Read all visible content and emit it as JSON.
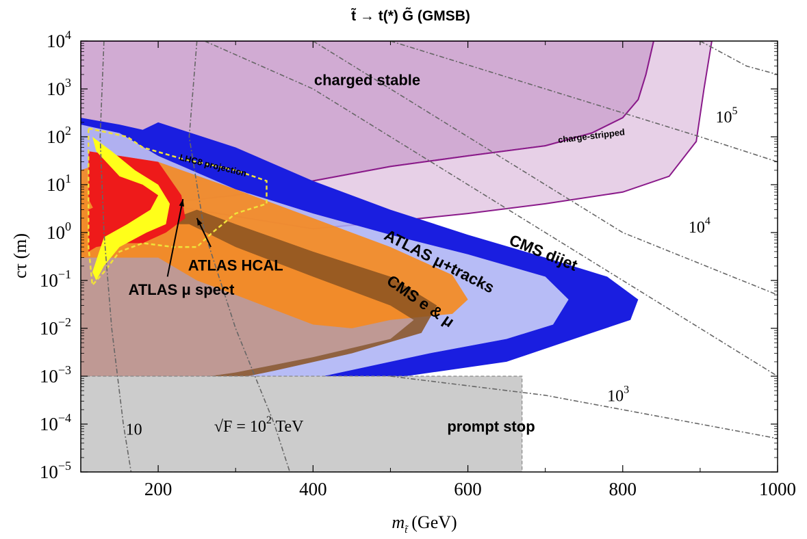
{
  "chart_data": {
    "type": "area",
    "title": "t̃ → t(*) G̃  (GMSB)",
    "xlabel": "m",
    "xlabel_sub": "t̃",
    "xlabel_unit": "(GeV)",
    "ylabel": "cτ (m)",
    "x_scale": "linear",
    "y_scale": "log",
    "xlim": [
      100,
      1000
    ],
    "ylim": [
      1e-05,
      10000.0
    ],
    "x_ticks": [
      {
        "value": 200,
        "label": "200"
      },
      {
        "value": 400,
        "label": "400"
      },
      {
        "value": 600,
        "label": "600"
      },
      {
        "value": 800,
        "label": "800"
      },
      {
        "value": 1000,
        "label": "1000"
      }
    ],
    "y_ticks": [
      {
        "value": 1e-05,
        "base": "10",
        "exp": "−5"
      },
      {
        "value": 0.0001,
        "base": "10",
        "exp": "−4"
      },
      {
        "value": 0.001,
        "base": "10",
        "exp": "−3"
      },
      {
        "value": 0.01,
        "base": "10",
        "exp": "−2"
      },
      {
        "value": 0.1,
        "base": "10",
        "exp": "−1"
      },
      {
        "value": 1,
        "base": "10",
        "exp": "0"
      },
      {
        "value": 10,
        "base": "10",
        "exp": "1"
      },
      {
        "value": 100,
        "base": "10",
        "exp": "2"
      },
      {
        "value": 1000,
        "base": "10",
        "exp": "3"
      },
      {
        "value": 10000,
        "base": "10",
        "exp": "4"
      }
    ],
    "regions": [
      {
        "name": "charged stable",
        "fill": "#c99ccb",
        "opacity": 0.85,
        "stroke": "#8a2a8a",
        "points": [
          [
            100,
            3
          ],
          [
            200,
            4
          ],
          [
            300,
            6
          ],
          [
            400,
            12
          ],
          [
            500,
            24
          ],
          [
            600,
            40
          ],
          [
            700,
            65
          ],
          [
            760,
            120
          ],
          [
            800,
            250
          ],
          [
            820,
            600
          ],
          [
            830,
            2000
          ],
          [
            840,
            10000
          ],
          [
            100,
            10000
          ]
        ]
      },
      {
        "name": "charge-stripped",
        "fill": "#e3c8e3",
        "opacity": 0.85,
        "stroke": "#8a1a8a",
        "points": [
          [
            100,
            3
          ],
          [
            200,
            4
          ],
          [
            400,
            1.2
          ],
          [
            500,
            1.7
          ],
          [
            600,
            2.5
          ],
          [
            700,
            4
          ],
          [
            800,
            7
          ],
          [
            860,
            15
          ],
          [
            895,
            80
          ],
          [
            905,
            1000
          ],
          [
            915,
            10000
          ],
          [
            840,
            10000
          ],
          [
            830,
            2000
          ],
          [
            820,
            600
          ],
          [
            800,
            250
          ],
          [
            760,
            120
          ],
          [
            700,
            65
          ],
          [
            600,
            40
          ],
          [
            500,
            24
          ],
          [
            400,
            12
          ],
          [
            300,
            6
          ],
          [
            200,
            4
          ]
        ]
      },
      {
        "name": "CMS dijet (inner)",
        "fill": "#aab0f5",
        "opacity": 0.85,
        "points": [
          [
            100,
            180
          ],
          [
            150,
            120
          ],
          [
            200,
            40
          ],
          [
            300,
            8
          ],
          [
            400,
            2.5
          ],
          [
            500,
            0.9
          ],
          [
            600,
            0.35
          ],
          [
            700,
            0.12
          ],
          [
            730,
            0.04
          ],
          [
            710,
            0.012
          ],
          [
            650,
            0.006
          ],
          [
            550,
            0.003
          ],
          [
            400,
            0.0009
          ],
          [
            300,
            0.0004
          ],
          [
            200,
            0.0002
          ],
          [
            100,
            0.0002
          ]
        ]
      },
      {
        "name": "CMS dijet",
        "fill": "#1a1ee0",
        "opacity": 1.0,
        "points": [
          [
            100,
            250
          ],
          [
            150,
            180
          ],
          [
            180,
            140
          ],
          [
            200,
            200
          ],
          [
            300,
            60
          ],
          [
            400,
            12
          ],
          [
            500,
            3
          ],
          [
            600,
            0.9
          ],
          [
            700,
            0.3
          ],
          [
            780,
            0.12
          ],
          [
            820,
            0.04
          ],
          [
            810,
            0.015
          ],
          [
            760,
            0.008
          ],
          [
            650,
            0.002
          ],
          [
            500,
            0.0009
          ],
          [
            400,
            0.0005
          ],
          [
            300,
            0.0003
          ],
          [
            220,
            0.00012
          ],
          [
            150,
            0.0001
          ],
          [
            100,
            8e-05
          ],
          [
            100,
            0.0002
          ],
          [
            200,
            0.0002
          ],
          [
            300,
            0.0004
          ],
          [
            400,
            0.0009
          ],
          [
            550,
            0.003
          ],
          [
            650,
            0.006
          ],
          [
            710,
            0.012
          ],
          [
            730,
            0.04
          ],
          [
            700,
            0.12
          ],
          [
            600,
            0.35
          ],
          [
            500,
            0.9
          ],
          [
            400,
            2.5
          ],
          [
            300,
            8
          ],
          [
            200,
            40
          ],
          [
            150,
            120
          ],
          [
            100,
            180
          ]
        ]
      },
      {
        "name": "CMS e & μ (inner)",
        "fill": "#c0958a",
        "opacity": 0.9,
        "points": [
          [
            100,
            8
          ],
          [
            150,
            6
          ],
          [
            200,
            3
          ],
          [
            240,
            1.5
          ],
          [
            300,
            0.5
          ],
          [
            400,
            0.12
          ],
          [
            500,
            0.03
          ],
          [
            530,
            0.015
          ],
          [
            500,
            0.006
          ],
          [
            400,
            0.0025
          ],
          [
            300,
            0.0012
          ],
          [
            200,
            0.0007
          ],
          [
            100,
            0.0005
          ]
        ]
      },
      {
        "name": "ATLAS μ+tracks",
        "fill": "#f68a1e",
        "opacity": 0.9,
        "points": [
          [
            100,
            20
          ],
          [
            150,
            40
          ],
          [
            200,
            30
          ],
          [
            300,
            8
          ],
          [
            400,
            2
          ],
          [
            500,
            0.5
          ],
          [
            580,
            0.13
          ],
          [
            600,
            0.04
          ],
          [
            580,
            0.02
          ],
          [
            500,
            0.015
          ],
          [
            450,
            0.01
          ],
          [
            400,
            0.012
          ],
          [
            300,
            0.05
          ],
          [
            250,
            0.1
          ],
          [
            200,
            0.3
          ],
          [
            150,
            0.3
          ],
          [
            100,
            0.3
          ]
        ]
      },
      {
        "name": "CMS e & μ",
        "fill": "#8a5220",
        "opacity": 0.85,
        "points": [
          [
            200,
            1.5
          ],
          [
            250,
            3
          ],
          [
            300,
            1.5
          ],
          [
            400,
            0.4
          ],
          [
            500,
            0.12
          ],
          [
            560,
            0.03
          ],
          [
            540,
            0.008
          ],
          [
            450,
            0.003
          ],
          [
            350,
            0.0013
          ],
          [
            250,
            0.0006
          ],
          [
            200,
            0.0004
          ],
          [
            150,
            0.0003
          ],
          [
            120,
            0.0003
          ],
          [
            120,
            0.0005
          ],
          [
            200,
            0.0007
          ],
          [
            300,
            0.0012
          ],
          [
            400,
            0.0025
          ],
          [
            500,
            0.006
          ],
          [
            530,
            0.015
          ],
          [
            500,
            0.03
          ],
          [
            400,
            0.12
          ],
          [
            300,
            0.5
          ],
          [
            240,
            1.5
          ]
        ]
      },
      {
        "name": "ATLAS HCAL",
        "fill": "#ee1a1a",
        "opacity": 1.0,
        "points": [
          [
            110,
            50
          ],
          [
            150,
            40
          ],
          [
            200,
            30
          ],
          [
            230,
            6
          ],
          [
            235,
            2
          ],
          [
            210,
            1
          ],
          [
            180,
            0.6
          ],
          [
            150,
            0.6
          ],
          [
            120,
            0.5
          ],
          [
            110,
            0.4
          ],
          [
            110,
            3
          ],
          [
            150,
            6
          ],
          [
            190,
            5
          ],
          [
            210,
            2
          ],
          [
            200,
            1.2
          ],
          [
            170,
            1
          ],
          [
            130,
            1.2
          ],
          [
            110,
            5
          ]
        ]
      },
      {
        "name": "ATLAS μ spect",
        "fill": "#ffff1a",
        "opacity": 1.0,
        "points": [
          [
            115,
            100
          ],
          [
            140,
            50
          ],
          [
            170,
            20
          ],
          [
            200,
            10
          ],
          [
            215,
            4
          ],
          [
            210,
            1.5
          ],
          [
            185,
            1
          ],
          [
            150,
            0.5
          ],
          [
            130,
            0.2
          ],
          [
            120,
            0.1
          ],
          [
            115,
            0.15
          ],
          [
            130,
            0.8
          ],
          [
            160,
            1.5
          ],
          [
            190,
            3
          ],
          [
            200,
            6
          ],
          [
            180,
            10
          ],
          [
            150,
            15
          ],
          [
            120,
            50
          ]
        ]
      }
    ],
    "projection": {
      "name": "LHC8 projection",
      "stroke": "#f0e23a",
      "points": [
        [
          110,
          150
        ],
        [
          160,
          100
        ],
        [
          180,
          60
        ],
        [
          230,
          35
        ],
        [
          300,
          20
        ],
        [
          340,
          12
        ],
        [
          340,
          4
        ],
        [
          300,
          2.5
        ],
        [
          270,
          1
        ],
        [
          250,
          0.5
        ],
        [
          220,
          0.5
        ],
        [
          180,
          0.6
        ],
        [
          150,
          0.4
        ],
        [
          130,
          0.15
        ],
        [
          115,
          0.08
        ],
        [
          110,
          0.5
        ]
      ]
    },
    "prompt_stop": {
      "name": "prompt stop",
      "fill": "#cccccc",
      "points": [
        [
          100,
          1e-05
        ],
        [
          670,
          1e-05
        ],
        [
          670,
          0.001
        ],
        [
          100,
          0.001
        ]
      ]
    },
    "contours": [
      {
        "name": "10",
        "points": [
          [
            130,
            10000.0
          ],
          [
            125,
            100.0
          ],
          [
            130,
            1
          ],
          [
            140,
            0.01
          ],
          [
            155,
            0.0001
          ],
          [
            165,
            1e-05
          ]
        ]
      },
      {
        "name": "10^2 TeV",
        "points": [
          [
            250,
            10000.0
          ],
          [
            240,
            100.0
          ],
          [
            260,
            1
          ],
          [
            300,
            0.01
          ],
          [
            350,
            0.0001
          ],
          [
            370,
            1e-05
          ]
        ]
      },
      {
        "name": "10^3",
        "points": [
          [
            500,
            10000.0
          ],
          [
            700,
            1000.0
          ],
          [
            900,
            100.0
          ],
          [
            1000,
            30.0
          ]
        ]
      },
      {
        "name": "10^4",
        "points": [
          [
            400,
            10000.0
          ],
          [
            600,
            100.0
          ],
          [
            800,
            1
          ],
          [
            1000,
            0.05
          ]
        ]
      },
      {
        "name": "10^5",
        "points": [
          [
            900,
            10000.0
          ],
          [
            960,
            3000.0
          ],
          [
            1000,
            2000.0
          ]
        ]
      },
      {
        "name": "extra",
        "points": [
          [
            260,
            10000.0
          ],
          [
            400,
            1000.0
          ],
          [
            600,
            10.0
          ],
          [
            800,
            0.1
          ],
          [
            1000,
            0.001
          ]
        ]
      },
      {
        "name": "low",
        "points": [
          [
            500,
            0.001
          ],
          [
            700,
            0.0004
          ],
          [
            900,
            0.0001
          ],
          [
            1000,
            5e-05
          ]
        ]
      }
    ],
    "annotations": [
      {
        "text": "charged stable",
        "x": 470,
        "y": 1200,
        "style": "bold"
      },
      {
        "text": "charge-stripped",
        "x": 760,
        "y": 90,
        "style": "small-rot"
      },
      {
        "text": "LHC8 projection",
        "x": 270,
        "y": 22,
        "style": "small-rot2"
      },
      {
        "text": "ATLAS HCAL",
        "x": 300,
        "y": 0.16,
        "style": "bold"
      },
      {
        "text": "ATLAS μ spect",
        "x": 230,
        "y": 0.05,
        "style": "bold"
      },
      {
        "text": "ATLAS μ+tracks",
        "x": 560,
        "y": 0.2,
        "style": "bold-rot"
      },
      {
        "text": "CMS e & μ",
        "x": 535,
        "y": 0.03,
        "style": "bold-rot2"
      },
      {
        "text": "CMS dijet",
        "x": 695,
        "y": 0.3,
        "style": "bold-rot3"
      },
      {
        "text": "prompt stop",
        "x": 630,
        "y": 7e-05,
        "style": "bold"
      }
    ],
    "contour_labels": [
      {
        "text": "10",
        "x": 158,
        "y": 6e-05,
        "sup": ""
      },
      {
        "text": "10",
        "x": 1060,
        "y": 0.001,
        "sup": ""
      },
      {
        "text": "10",
        "x": 780,
        "y": 0.0003,
        "sup": "3"
      },
      {
        "text": "10",
        "x": 885,
        "y": 1,
        "sup": "4"
      },
      {
        "text": "10",
        "x": 920,
        "y": 200,
        "sup": "5"
      }
    ],
    "sqrtF_label": {
      "prefix": "√F = 10",
      "sup": "2",
      "suffix": " TeV",
      "x": 330,
      "y": 7e-05
    }
  }
}
